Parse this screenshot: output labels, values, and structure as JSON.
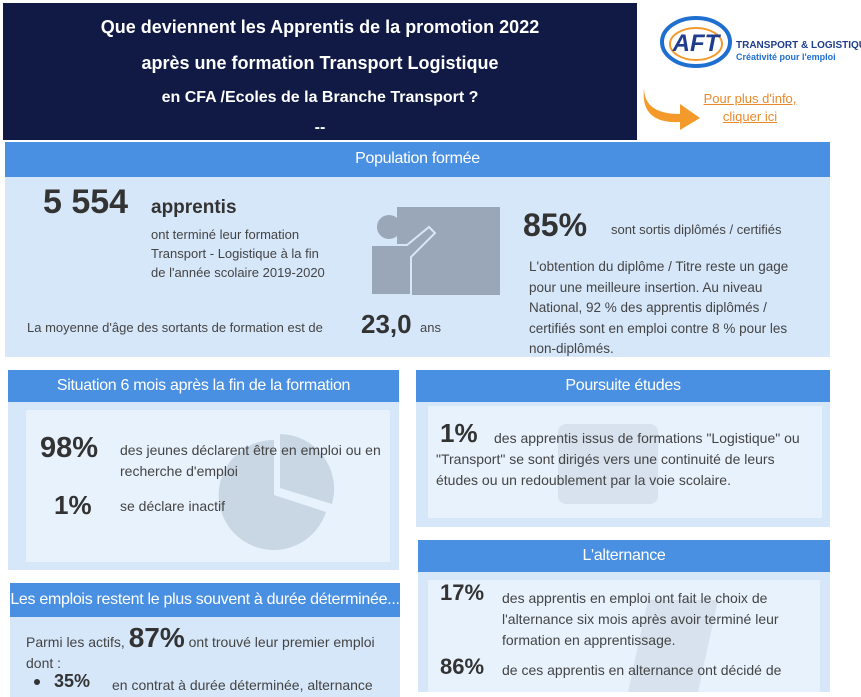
{
  "header": {
    "title_lines": [
      "Que deviennent les Apprentis de la promotion 2022",
      "après une formation Transport Logistique",
      "en CFA /Ecoles de la Branche Transport ?",
      "--"
    ],
    "logo": {
      "brand": "AFT",
      "tagline_1": "TRANSPORT & LOGISTIQUE",
      "tagline_2": "Créativité pour l'emploi"
    },
    "link_lines": [
      "Pour plus d'info,",
      "cliquer ici"
    ]
  },
  "population": {
    "title": "Population formée",
    "count": "5 554",
    "count_unit": "apprentis",
    "count_text": [
      "ont terminé leur formation",
      "Transport - Logistique à la fin",
      "de l'année scolaire 2019-2020"
    ],
    "age_text": "La moyenne d'âge des sortants de formation est de",
    "age_value": "23,0",
    "age_unit": "ans",
    "graduated_value": "85%",
    "graduated_text": "sont sortis diplômés / certifiés",
    "graduated_note": "L'obtention du diplôme / Titre reste un gage pour une meilleure insertion. Au niveau National, 92 % des apprentis diplômés / certifiés sont en emploi contre 8 % pour les non-diplômés."
  },
  "situation": {
    "title": "Situation 6 mois après la fin de la formation",
    "items": [
      {
        "value": "98%",
        "text": "des jeunes déclarent être en emploi ou en recherche d'emploi"
      },
      {
        "value": "1%",
        "text": "se déclare inactif"
      }
    ]
  },
  "studies": {
    "title": "Poursuite études",
    "value": "1%",
    "text": "des apprentis issus de formations \"Logistique\" ou \"Transport\" se sont dirigés vers une continuité de leurs études ou un redoublement par la voie scolaire."
  },
  "jobs": {
    "title": "Les emplois restent le plus souvent à durée déterminée...",
    "intro_before": "Parmi les actifs,",
    "intro_value": "87%",
    "intro_after": "ont trouvé leur premier emploi dont :",
    "items": [
      {
        "value": "35%",
        "text": "en contrat à durée déterminée, alternance"
      }
    ]
  },
  "alternance": {
    "title": "L'alternance",
    "items": [
      {
        "value": "17%",
        "text": "des apprentis en emploi ont fait le choix de l'alternance six mois après avoir terminé leur formation en apprentissage."
      },
      {
        "value": "86%",
        "text": "de ces apprentis en alternance ont décidé de"
      }
    ]
  }
}
